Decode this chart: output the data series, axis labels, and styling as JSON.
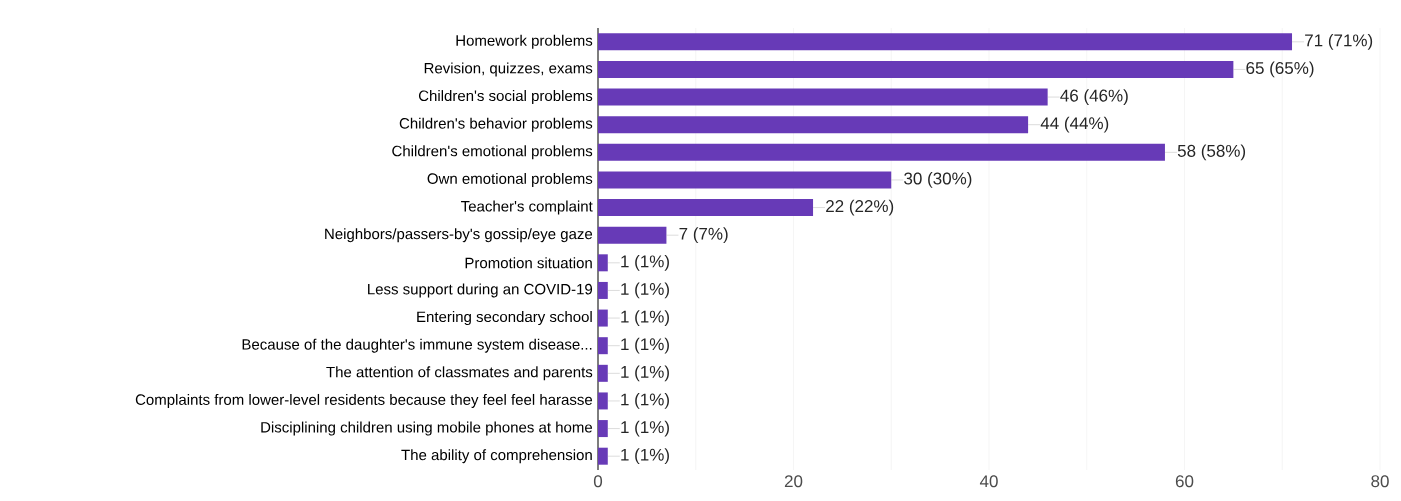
{
  "chart_data": {
    "type": "bar",
    "orientation": "horizontal",
    "categories": [
      "Homework problems",
      "Revision, quizzes, exams",
      "Children's social problems",
      "Children's behavior problems",
      "Children's emotional problems",
      "Own emotional problems",
      "Teacher's complaint",
      "Neighbors/passers-by's gossip/eye gaze",
      "Promotion situation",
      "Less  support  during  an  COVID-19",
      "Entering secondary school",
      "Because of the daughter's immune system disease...",
      "The attention of classmates and parents",
      "Complaints  from  lower-level  residents  because  they  feel  feel  harasse",
      "Disciplining children using mobile phones at home",
      "The ability of comprehension"
    ],
    "values": [
      71,
      65,
      46,
      44,
      58,
      30,
      22,
      7,
      1,
      1,
      1,
      1,
      1,
      1,
      1,
      1
    ],
    "value_labels": [
      "71 (71%)",
      "65 (65%)",
      "46 (46%)",
      "44 (44%)",
      "58 (58%)",
      "30 (30%)",
      "22 (22%)",
      "7 (7%)",
      "1 (1%)",
      "1 (1%)",
      "1 (1%)",
      "1 (1%)",
      "1 (1%)",
      "1 (1%)",
      "1 (1%)",
      "1 (1%)"
    ],
    "color": "#673ab7",
    "xlim": [
      0,
      80
    ],
    "xticks": [
      0,
      {
        "value": 10,
        "label": null
      },
      20,
      {
        "value": 30,
        "label": null
      },
      40,
      {
        "value": 50,
        "label": null
      },
      60,
      {
        "value": 70,
        "label": null
      },
      80
    ],
    "grid": "x"
  }
}
